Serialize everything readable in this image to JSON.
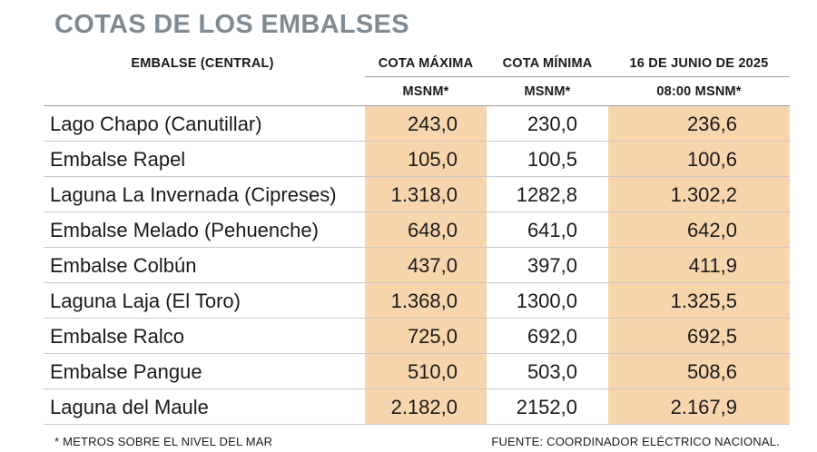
{
  "title": "COTAS DE LOS EMBALSES",
  "headers": {
    "col_name": "EMBALSE (CENTRAL)",
    "col_max": "COTA MÁXIMA",
    "col_min": "COTA MÍNIMA",
    "col_date": "16 DE JUNIO DE 2025",
    "unit_max": "MSNM*",
    "unit_min": "MSNM*",
    "unit_date": "08:00 MSNM*"
  },
  "colors": {
    "title": "#7f8a93",
    "highlight_band": "#f8d6ad"
  },
  "chart_data": {
    "type": "table",
    "title": "COTAS DE LOS EMBALSES",
    "columns": [
      "EMBALSE (CENTRAL)",
      "COTA MÁXIMA MSNM*",
      "COTA MÍNIMA MSNM*",
      "16 DE JUNIO DE 2025 08:00 MSNM*"
    ],
    "rows": [
      {
        "name": "Lago Chapo (Canutillar)",
        "max": "243,0",
        "min": "230,0",
        "current": "236,6"
      },
      {
        "name": "Embalse Rapel",
        "max": "105,0",
        "min": "100,5",
        "current": "100,6"
      },
      {
        "name": "Laguna La Invernada (Cipreses)",
        "max": "1.318,0",
        "min": "1282,8",
        "current": "1.302,2"
      },
      {
        "name": "Embalse Melado (Pehuenche)",
        "max": "648,0",
        "min": "641,0",
        "current": "642,0"
      },
      {
        "name": "Embalse Colbún",
        "max": "437,0",
        "min": "397,0",
        "current": "411,9"
      },
      {
        "name": "Laguna Laja (El Toro)",
        "max": "1.368,0",
        "min": "1300,0",
        "current": "1.325,5"
      },
      {
        "name": "Embalse Ralco",
        "max": "725,0",
        "min": "692,0",
        "current": "692,5"
      },
      {
        "name": "Embalse Pangue",
        "max": "510,0",
        "min": "503,0",
        "current": "508,6"
      },
      {
        "name": "Laguna del Maule",
        "max": "2.182,0",
        "min": "2152,0",
        "current": "2.167,9"
      }
    ]
  },
  "footer": {
    "note": "* METROS SOBRE EL NIVEL DEL MAR",
    "source": "FUENTE: COORDINADOR ELÉCTRICO NACIONAL."
  }
}
